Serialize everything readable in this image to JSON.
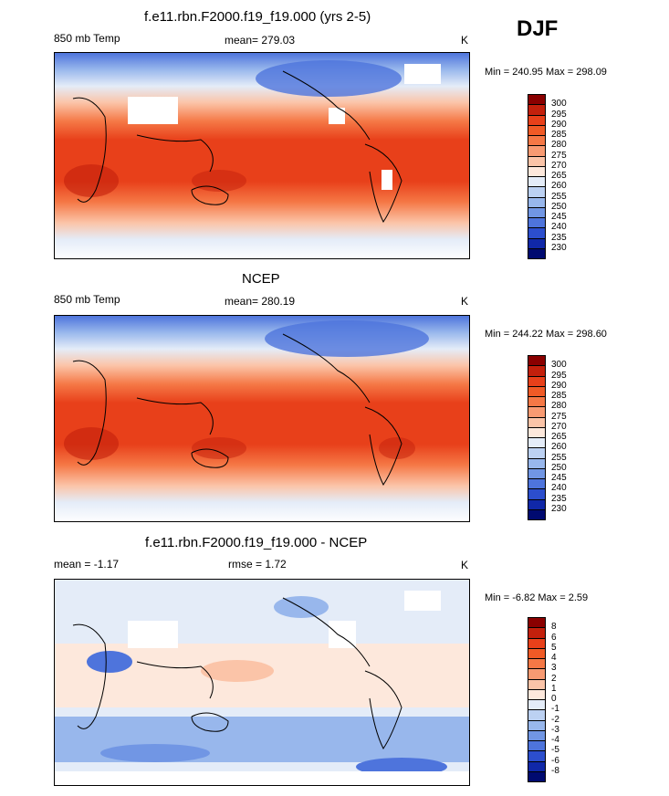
{
  "season": "DJF",
  "panels": [
    {
      "title": "f.e11.rbn.F2000.f19_f19.000 (yrs 2-5)",
      "left_label": "850 mb Temp",
      "center_label": "mean= 279.03",
      "units": "K",
      "minmax": "Min = 240.95 Max = 298.09",
      "colorbar_labels": [
        "300",
        "295",
        "290",
        "285",
        "280",
        "275",
        "270",
        "265",
        "260",
        "255",
        "250",
        "245",
        "240",
        "235",
        "230"
      ],
      "colors": [
        "#8a0000",
        "#c3200c",
        "#e8401a",
        "#f05a26",
        "#f57846",
        "#f89a72",
        "#fbc4a8",
        "#fde8dc",
        "#e4ecf8",
        "#bcd1f2",
        "#98b7ec",
        "#7196e4",
        "#4e74dc",
        "#2c4ecd",
        "#1028a8",
        "#000a70"
      ]
    },
    {
      "title": "NCEP",
      "left_label": "850 mb Temp",
      "center_label": "mean= 280.19",
      "units": "K",
      "minmax": "Min = 244.22 Max = 298.60",
      "colorbar_labels": [
        "300",
        "295",
        "290",
        "285",
        "280",
        "275",
        "270",
        "265",
        "260",
        "255",
        "250",
        "245",
        "240",
        "235",
        "230"
      ],
      "colors": [
        "#8a0000",
        "#c3200c",
        "#e8401a",
        "#f05a26",
        "#f57846",
        "#f89a72",
        "#fbc4a8",
        "#fde8dc",
        "#e4ecf8",
        "#bcd1f2",
        "#98b7ec",
        "#7196e4",
        "#4e74dc",
        "#2c4ecd",
        "#1028a8",
        "#000a70"
      ]
    },
    {
      "title": "f.e11.rbn.F2000.f19_f19.000 - NCEP",
      "left_label": "mean =  -1.17",
      "center_label": "rmse =   1.72",
      "units": "K",
      "minmax": "Min =  -6.82 Max =   2.59",
      "colorbar_labels": [
        "8",
        "6",
        "5",
        "4",
        "3",
        "2",
        "1",
        "0",
        "-1",
        "-2",
        "-3",
        "-4",
        "-5",
        "-6",
        "-8"
      ],
      "colors": [
        "#8a0000",
        "#c3200c",
        "#e8401a",
        "#f05a26",
        "#f57846",
        "#f89a72",
        "#fbc4a8",
        "#fde8dc",
        "#e4ecf8",
        "#bcd1f2",
        "#98b7ec",
        "#7196e4",
        "#4e74dc",
        "#2c4ecd",
        "#1028a8",
        "#000a70"
      ]
    }
  ],
  "chart_data": [
    {
      "type": "heatmap",
      "title": "f.e11.rbn.F2000.f19_f19.000 (yrs 2-5)",
      "variable": "850 mb Temp",
      "units": "K",
      "mean": 279.03,
      "min": 240.95,
      "max": 298.09,
      "levels": [
        230,
        235,
        240,
        245,
        250,
        255,
        260,
        265,
        270,
        275,
        280,
        285,
        290,
        295,
        300
      ]
    },
    {
      "type": "heatmap",
      "title": "NCEP",
      "variable": "850 mb Temp",
      "units": "K",
      "mean": 280.19,
      "min": 244.22,
      "max": 298.6,
      "levels": [
        230,
        235,
        240,
        245,
        250,
        255,
        260,
        265,
        270,
        275,
        280,
        285,
        290,
        295,
        300
      ]
    },
    {
      "type": "heatmap",
      "title": "f.e11.rbn.F2000.f19_f19.000 - NCEP",
      "units": "K",
      "mean": -1.17,
      "rmse": 1.72,
      "min": -6.82,
      "max": 2.59,
      "levels": [
        -8,
        -6,
        -5,
        -4,
        -3,
        -2,
        -1,
        0,
        1,
        2,
        3,
        4,
        5,
        6,
        8
      ]
    }
  ]
}
